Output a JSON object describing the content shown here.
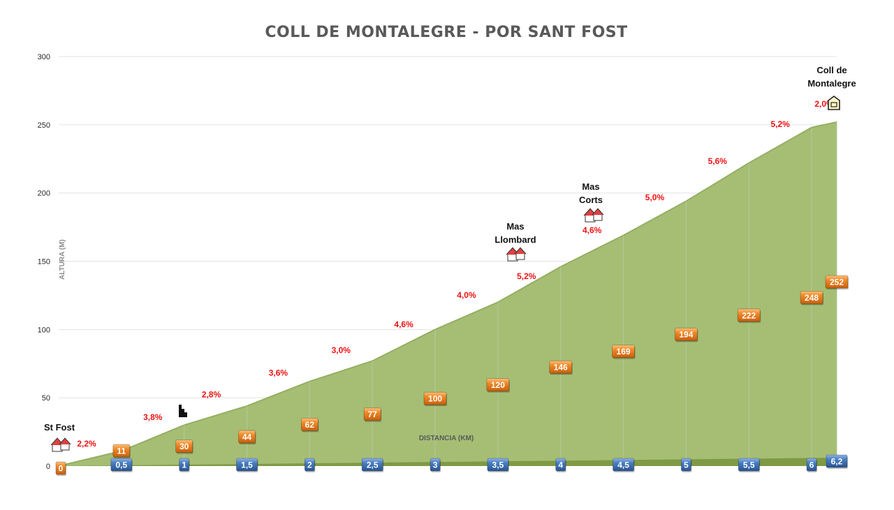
{
  "chart_data": {
    "type": "area",
    "title": "COLL DE MONTALEGRE - POR SANT FOST",
    "xlabel": "DISTANCIA (KM)",
    "ylabel": "ALTURA (M)",
    "ylim": [
      0,
      300
    ],
    "yticks": [
      "0",
      "50",
      "100",
      "150",
      "200",
      "250",
      "300"
    ],
    "grid": true,
    "area_color": "#a5be74",
    "elevation_box_color": "#ee7d1f",
    "distance_box_color": "#3d6fb0",
    "grade_color": "#ee1111",
    "x": [
      0,
      0.5,
      1,
      1.5,
      2,
      2.5,
      3,
      3.5,
      4,
      4.5,
      5,
      5.5,
      6,
      6.2
    ],
    "x_labels": [
      "0,5",
      "1",
      "1,5",
      "2",
      "2,5",
      "3",
      "3,5",
      "4",
      "4,5",
      "5",
      "5,5",
      "6",
      "6,2"
    ],
    "y": [
      0,
      11,
      30,
      44,
      62,
      77,
      100,
      120,
      146,
      169,
      194,
      222,
      248,
      252
    ],
    "y_labels": [
      "0",
      "11",
      "30",
      "44",
      "62",
      "77",
      "100",
      "120",
      "146",
      "169",
      "194",
      "222",
      "248",
      "252"
    ],
    "grades": [
      "2,2%",
      "3,8%",
      "2,8%",
      "3,6%",
      "3,0%",
      "4,6%",
      "4,0%",
      "5,2%",
      "4,6%",
      "5,0%",
      "5,6%",
      "5,2%",
      "2,0%"
    ],
    "places": [
      {
        "lines": [
          "St Fost"
        ],
        "icon": "houses-icon"
      },
      {
        "lines": [],
        "icon": "chess-rook-icon"
      },
      {
        "lines": [
          "Mas",
          "Llombard"
        ],
        "icon": "houses-icon"
      },
      {
        "lines": [
          "Mas",
          "Corts"
        ],
        "icon": "houses-icon"
      },
      {
        "lines": [
          "Coll de",
          "Montalegre"
        ],
        "icon": "summit-icon"
      }
    ]
  }
}
